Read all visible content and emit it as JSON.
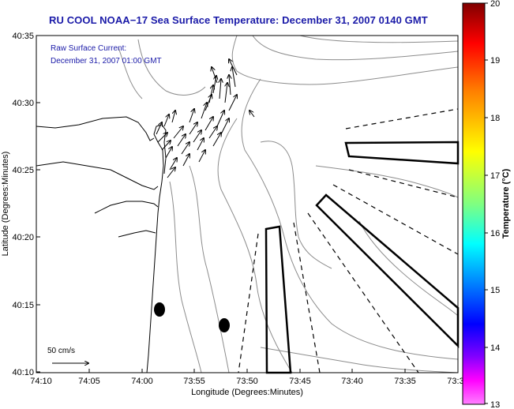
{
  "title": "RU COOL  NOAA−17  Sea Surface Temperature:  December 31, 2007 0140 GMT",
  "annotation": {
    "line1": "Raw Surface Current:",
    "line2": "December 31, 2007 01:00 GMT"
  },
  "scale_label": "50 cm/s",
  "x_axis": {
    "label": "Longitude (Degrees:Minutes)",
    "ticks": [
      "74:10",
      "74:05",
      "74:00",
      "73:55",
      "73:50",
      "73:45",
      "73:40",
      "73:35",
      "73:3"
    ]
  },
  "y_axis": {
    "label": "Latitude (Degrees:Minutes)",
    "ticks": [
      "40:35",
      "40:30",
      "40:25",
      "40:20",
      "40:15",
      "40:10"
    ]
  },
  "colorbar": {
    "label": "Temperature (°C)",
    "ticks": [
      "20",
      "19",
      "18",
      "17",
      "16",
      "15",
      "14",
      "13"
    ],
    "colors": [
      "#800000",
      "#ff0000",
      "#ff8000",
      "#ffff00",
      "#80ff80",
      "#00ffff",
      "#0080ff",
      "#0000ff",
      "#8000ff",
      "#ff00ff",
      "#ff80ff"
    ]
  },
  "colors": {
    "title": "#1a1aa8",
    "annotation": "#1a1aa8",
    "frame": "#000000",
    "contour": "#8c8c8c"
  }
}
